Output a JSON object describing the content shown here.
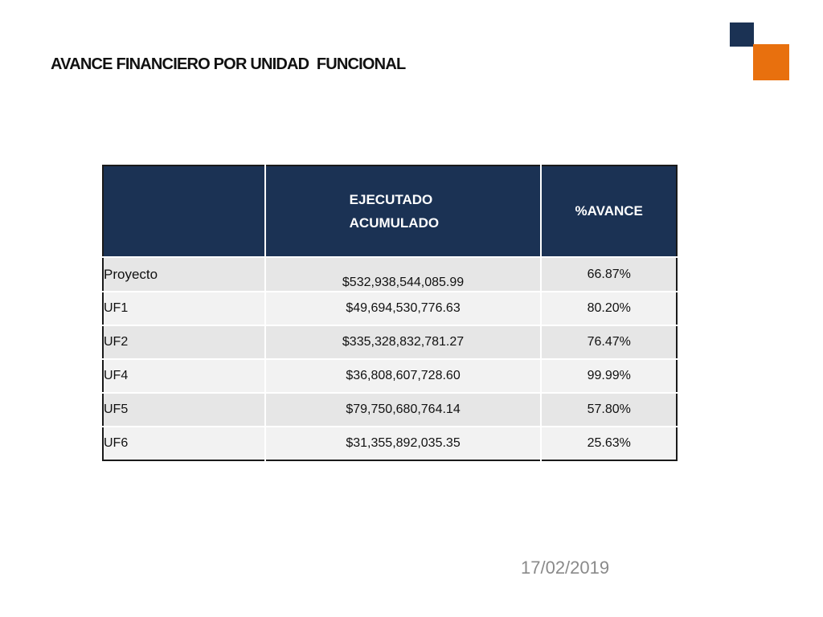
{
  "slide": {
    "title": "AVANCE FINANCIERO POR UNIDAD  FUNCIONAL",
    "date": "17/02/2019"
  },
  "colors": {
    "header_bg": "#1b3254",
    "accent_orange": "#e8700e",
    "row_shade_a": "#e6e6e6",
    "row_shade_b": "#f2f2f2"
  },
  "table": {
    "headers": {
      "first": "",
      "executed_line1": "EJECUTADO",
      "executed_line2": "ACUMULADO",
      "progress": "%AVANCE"
    },
    "rows": [
      {
        "name": "Proyecto",
        "executed": "$532,938,544,085.99",
        "progress": "66.87%"
      },
      {
        "name": "UF1",
        "executed": "$49,694,530,776.63",
        "progress": "80.20%"
      },
      {
        "name": "UF2",
        "executed": "$335,328,832,781.27",
        "progress": "76.47%"
      },
      {
        "name": "UF4",
        "executed": "$36,808,607,728.60",
        "progress": "99.99%"
      },
      {
        "name": "UF5",
        "executed": "$79,750,680,764.14",
        "progress": "57.80%"
      },
      {
        "name": "UF6",
        "executed": "$31,355,892,035.35",
        "progress": "25.63%"
      }
    ]
  }
}
